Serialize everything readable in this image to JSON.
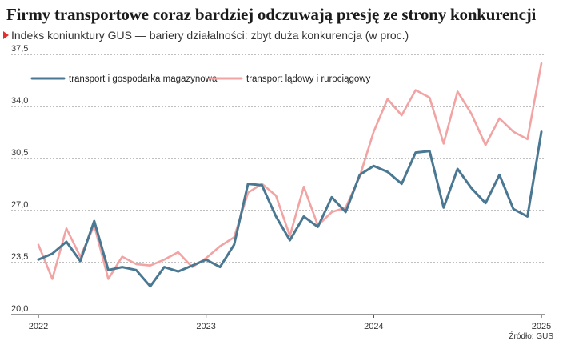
{
  "title": "Firmy transportowe coraz bardziej odczuwają presję ze strony konkurencji",
  "subtitle": "Indeks koniunktury GUS — bariery działalności: zbyt duża konkurencja (w proc.)",
  "source": "Źródło: GUS",
  "colors": {
    "transport": "#4a7892",
    "ladowy": "#f2a3a3",
    "grid": "#555555"
  },
  "chart_data": {
    "type": "line",
    "ylim": [
      20.0,
      37.5
    ],
    "yticks": [
      "20,0",
      "23,5",
      "27,0",
      "30,5",
      "34,0",
      "37,5"
    ],
    "ytick_values": [
      20.0,
      23.5,
      27.0,
      30.5,
      34.0,
      37.5
    ],
    "xticks": [
      "2022",
      "2023",
      "2024",
      "2025"
    ],
    "x_range": [
      2022.0,
      2025.0
    ],
    "legend_position": "top-left",
    "series": [
      {
        "name": "transport i gospodarka magazynowa",
        "color": "#4a7892",
        "x": [
          2022.0,
          2022.083,
          2022.167,
          2022.25,
          2022.333,
          2022.417,
          2022.5,
          2022.583,
          2022.667,
          2022.75,
          2022.833,
          2022.917,
          2023.0,
          2023.083,
          2023.167,
          2023.25,
          2023.333,
          2023.417,
          2023.5,
          2023.583,
          2023.667,
          2023.75,
          2023.833,
          2023.917,
          2024.0,
          2024.083,
          2024.167,
          2024.25,
          2024.333,
          2024.417,
          2024.5,
          2024.583,
          2024.667,
          2024.75,
          2024.833,
          2024.917,
          2025.0
        ],
        "values": [
          23.7,
          24.1,
          24.9,
          23.6,
          26.3,
          23.0,
          23.2,
          23.0,
          21.9,
          23.2,
          22.9,
          23.3,
          23.7,
          23.2,
          24.7,
          28.8,
          28.7,
          26.6,
          25.0,
          26.6,
          25.9,
          27.9,
          26.9,
          29.4,
          30.0,
          29.6,
          28.8,
          30.9,
          31.0,
          27.2,
          29.8,
          28.5,
          27.5,
          29.4,
          27.1,
          26.6,
          32.3
        ]
      },
      {
        "name": "transport lądowy i rurociągowy",
        "color": "#f2a3a3",
        "x": [
          2022.0,
          2022.083,
          2022.167,
          2022.25,
          2022.333,
          2022.417,
          2022.5,
          2022.583,
          2022.667,
          2022.75,
          2022.833,
          2022.917,
          2023.0,
          2023.083,
          2023.167,
          2023.25,
          2023.333,
          2023.417,
          2023.5,
          2023.583,
          2023.667,
          2023.75,
          2023.833,
          2023.917,
          2024.0,
          2024.083,
          2024.167,
          2024.25,
          2024.333,
          2024.417,
          2024.5,
          2024.583,
          2024.667,
          2024.75,
          2024.833,
          2024.917,
          2025.0
        ],
        "values": [
          24.7,
          22.4,
          25.8,
          23.9,
          26.0,
          22.4,
          23.9,
          23.4,
          23.3,
          23.7,
          24.2,
          23.2,
          23.8,
          24.6,
          25.2,
          28.2,
          28.8,
          28.0,
          25.3,
          28.6,
          26.0,
          26.9,
          27.2,
          29.3,
          32.3,
          34.5,
          33.4,
          35.1,
          34.6,
          31.5,
          35.0,
          33.5,
          31.4,
          33.2,
          32.3,
          31.8,
          36.9
        ]
      }
    ]
  }
}
